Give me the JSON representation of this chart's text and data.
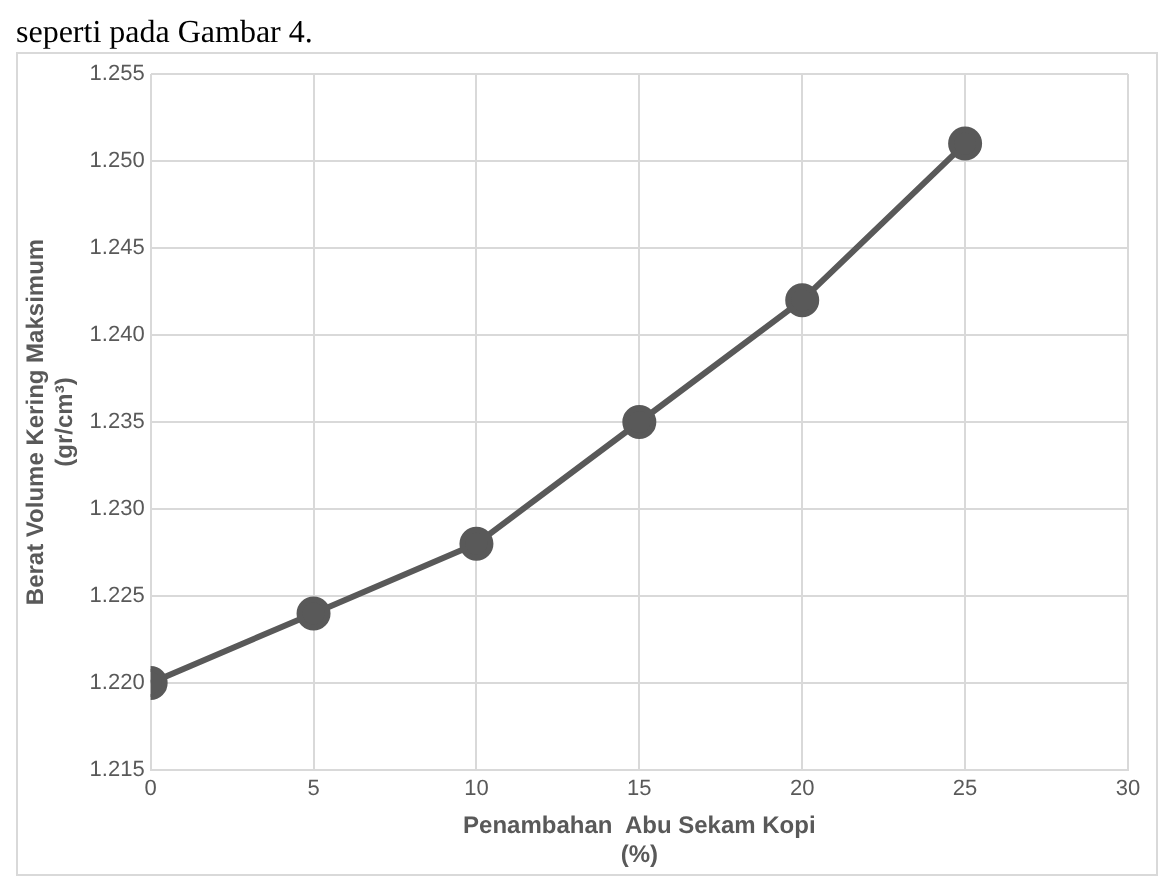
{
  "chart_data": {
    "type": "line",
    "annotations": [
      "seperti pada Gambar 4."
    ],
    "xlabel": "Penambahan  Abu Sekam Kopi\n(%)",
    "ylabel": "Berat Volume Kering Maksimum\n(gr/cm³)",
    "x": [
      0,
      5,
      10,
      15,
      20,
      25
    ],
    "series": [
      {
        "color": "#595959",
        "values": [
          1.22,
          1.224,
          1.228,
          1.235,
          1.242,
          1.251
        ]
      }
    ],
    "xlim": [
      0,
      30
    ],
    "xticks": [
      0,
      5,
      10,
      15,
      20,
      25,
      30
    ],
    "ylim": [
      1.215,
      1.255
    ],
    "yticks": [
      {
        "value": 1.215,
        "label": "1.215"
      },
      {
        "value": 1.22,
        "label": "1.220"
      },
      {
        "value": 1.225,
        "label": "1.225"
      },
      {
        "value": 1.23,
        "label": "1.230"
      },
      {
        "value": 1.235,
        "label": "1.235"
      },
      {
        "value": 1.24,
        "label": "1.240"
      },
      {
        "value": 1.245,
        "label": "1.245"
      },
      {
        "value": 1.25,
        "label": "1.250"
      },
      {
        "value": 1.255,
        "label": "1.255"
      }
    ],
    "grid": true,
    "legend": false,
    "marker": "circle",
    "line_style": "solid"
  }
}
